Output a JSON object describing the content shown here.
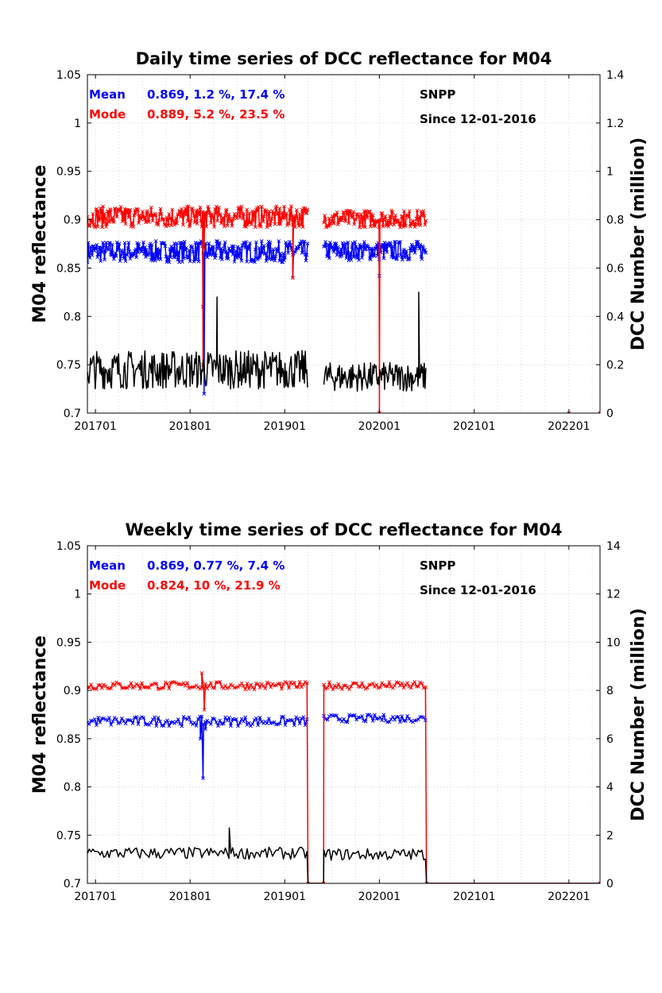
{
  "chart_data": [
    {
      "type": "line",
      "title": "Daily time series of DCC reflectance for M04",
      "ylabel": "M04 reflectance",
      "y2label": "DCC Number (million)",
      "ylim": [
        0.7,
        1.05
      ],
      "y2lim": [
        0,
        1.4
      ],
      "xlim": [
        "2016-12-01",
        "2022-05-01"
      ],
      "yticks": [
        "0.7",
        "0.75",
        "0.8",
        "0.85",
        "0.9",
        "0.95",
        "1",
        "1.05"
      ],
      "y2ticks": [
        "0",
        "0.2",
        "0.4",
        "0.6",
        "0.8",
        "1",
        "1.2",
        "1.4"
      ],
      "xticks": [
        {
          "label": "201701",
          "date": "2017-01-01"
        },
        {
          "label": "201801",
          "date": "2018-01-01"
        },
        {
          "label": "201901",
          "date": "2019-01-01"
        },
        {
          "label": "202001",
          "date": "2020-01-01"
        },
        {
          "label": "202101",
          "date": "2021-01-01"
        },
        {
          "label": "202201",
          "date": "2022-01-01"
        }
      ],
      "grid": true,
      "annotations": {
        "mean_label": "Mean",
        "mean_values": "0.869, 1.2 %, 17.4 %",
        "mode_label": "Mode",
        "mode_values": "0.889, 5.2 %, 23.5 %",
        "satellite": "SNPP",
        "since": "Since 12-01-2016"
      },
      "series": [
        {
          "name": "Mean",
          "color": "#0000ff",
          "axis": "left",
          "marker": "x",
          "segments": [
            {
              "start": "2016-12-01",
              "end": "2019-03-31",
              "level": 0.867,
              "jitter": 0.011
            },
            {
              "start": "2019-06-01",
              "end": "2020-06-30",
              "level": 0.868,
              "jitter": 0.01
            }
          ],
          "points": [
            {
              "x": "2018-02-20",
              "y": 0.81
            },
            {
              "x": "2018-02-24",
              "y": 0.72
            },
            {
              "x": "2019-02-01",
              "y": 0.84
            },
            {
              "x": "2020-01-01",
              "y": 0.842
            }
          ]
        },
        {
          "name": "Mode",
          "color": "#ff0000",
          "axis": "left",
          "marker": "x",
          "segments": [
            {
              "start": "2016-12-01",
              "end": "2019-03-31",
              "level": 0.903,
              "jitter": 0.011
            },
            {
              "start": "2019-06-01",
              "end": "2020-06-30",
              "level": 0.901,
              "jitter": 0.009
            }
          ],
          "points": [
            {
              "x": "2018-02-20",
              "y": 0.75
            },
            {
              "x": "2018-02-24",
              "y": 0.87
            },
            {
              "x": "2019-02-01",
              "y": 0.84
            },
            {
              "x": "2020-01-01",
              "y": 0.7
            },
            {
              "x": "2022-01-01",
              "y": 0.7
            },
            {
              "x": "2022-05-01",
              "y": 0.7
            }
          ]
        },
        {
          "name": "DCC Number",
          "color": "#000000",
          "axis": "right",
          "segments": [
            {
              "start": "2016-12-01",
              "end": "2019-03-31",
              "level": 0.18,
              "jitter": 0.08
            },
            {
              "start": "2019-06-01",
              "end": "2020-06-30",
              "level": 0.15,
              "jitter": 0.06
            }
          ],
          "points": [
            {
              "x": "2018-04-15",
              "y": 0.48
            },
            {
              "x": "2020-06-01",
              "y": 0.5
            }
          ]
        }
      ]
    },
    {
      "type": "line",
      "title": "Weekly time series of DCC reflectance for M04",
      "ylabel": "M04 reflectance",
      "y2label": "DCC Number (million)",
      "ylim": [
        0.7,
        1.05
      ],
      "y2lim": [
        0,
        14
      ],
      "xlim": [
        "2016-12-01",
        "2022-05-01"
      ],
      "yticks": [
        "0.7",
        "0.75",
        "0.8",
        "0.85",
        "0.9",
        "0.95",
        "1",
        "1.05"
      ],
      "y2ticks": [
        "0",
        "2",
        "4",
        "6",
        "8",
        "10",
        "12",
        "14"
      ],
      "xticks": [
        {
          "label": "201701",
          "date": "2017-01-01"
        },
        {
          "label": "201801",
          "date": "2018-01-01"
        },
        {
          "label": "201901",
          "date": "2019-01-01"
        },
        {
          "label": "202001",
          "date": "2020-01-01"
        },
        {
          "label": "202101",
          "date": "2021-01-01"
        },
        {
          "label": "202201",
          "date": "2022-01-01"
        }
      ],
      "grid": true,
      "annotations": {
        "mean_label": "Mean",
        "mean_values": "0.869, 0.77 %, 7.4 %",
        "mode_label": "Mode",
        "mode_values": "0.824, 10 %, 21.9 %",
        "satellite": "SNPP",
        "since": "Since 12-01-2016"
      },
      "series": [
        {
          "name": "Mean",
          "color": "#0000ff",
          "axis": "left",
          "marker": "x",
          "segments": [
            {
              "start": "2016-12-01",
              "end": "2019-03-31",
              "level": 0.868,
              "jitter": 0.005
            },
            {
              "start": "2019-06-01",
              "end": "2020-06-30",
              "level": 0.871,
              "jitter": 0.004
            }
          ],
          "points": [
            {
              "x": "2018-02-10",
              "y": 0.85
            },
            {
              "x": "2018-02-20",
              "y": 0.809
            },
            {
              "x": "2018-03-01",
              "y": 0.86
            }
          ]
        },
        {
          "name": "Mode",
          "color": "#ff0000",
          "axis": "left",
          "marker": "x",
          "segments": [
            {
              "start": "2016-12-01",
              "end": "2019-03-31",
              "level": 0.905,
              "jitter": 0.004
            },
            {
              "start": "2019-06-01",
              "end": "2020-06-30",
              "level": 0.905,
              "jitter": 0.004
            }
          ],
          "points": [
            {
              "x": "2018-02-15",
              "y": 0.918
            },
            {
              "x": "2018-02-25",
              "y": 0.88
            },
            {
              "x": "2019-04-01",
              "y": 0.7
            },
            {
              "x": "2019-05-31",
              "y": 0.7
            },
            {
              "x": "2020-07-01",
              "y": 0.7
            },
            {
              "x": "2022-05-01",
              "y": 0.7
            }
          ]
        },
        {
          "name": "DCC Number",
          "color": "#000000",
          "axis": "right",
          "segments": [
            {
              "start": "2016-12-01",
              "end": "2019-03-31",
              "level": 1.25,
              "jitter": 0.25
            },
            {
              "start": "2019-06-01",
              "end": "2020-06-30",
              "level": 1.2,
              "jitter": 0.25
            }
          ],
          "points": [
            {
              "x": "2018-06-01",
              "y": 2.3
            },
            {
              "x": "2019-04-01",
              "y": 0
            },
            {
              "x": "2019-05-31",
              "y": 0
            },
            {
              "x": "2020-07-01",
              "y": 0
            },
            {
              "x": "2022-05-01",
              "y": 0
            }
          ]
        }
      ]
    }
  ]
}
